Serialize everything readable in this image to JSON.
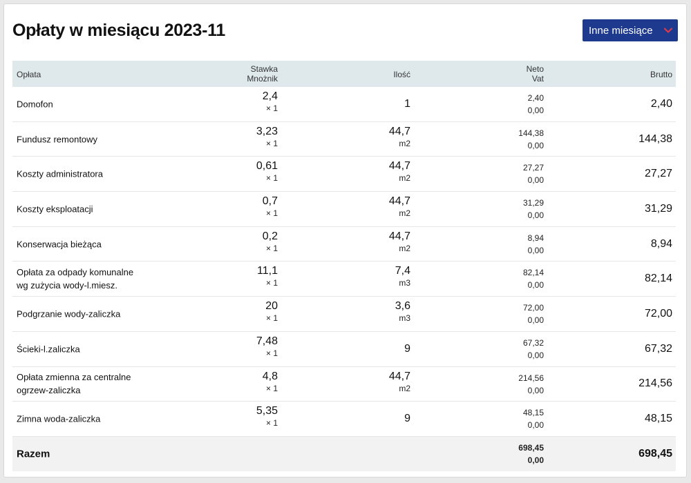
{
  "title": "Opłaty w miesiącu 2023-11",
  "months_button": {
    "label": "Inne miesiące",
    "icon": "chevron-down-icon",
    "bg_color": "#1e3a8f",
    "icon_color": "#e0394a"
  },
  "columns": {
    "name": "Opłata",
    "rate": "Stawka",
    "multiplier": "Mnożnik",
    "quantity": "Ilość",
    "net": "Neto",
    "vat": "Vat",
    "gross": "Brutto"
  },
  "rows": [
    {
      "name": "Domofon",
      "name2": "",
      "rate": "2,4",
      "mult": "× 1",
      "qty": "1",
      "unit": "",
      "net": "2,40",
      "vat": "0,00",
      "gross": "2,40"
    },
    {
      "name": "Fundusz remontowy",
      "name2": "",
      "rate": "3,23",
      "mult": "× 1",
      "qty": "44,7",
      "unit": "m2",
      "net": "144,38",
      "vat": "0,00",
      "gross": "144,38"
    },
    {
      "name": "Koszty administratora",
      "name2": "",
      "rate": "0,61",
      "mult": "× 1",
      "qty": "44,7",
      "unit": "m2",
      "net": "27,27",
      "vat": "0,00",
      "gross": "27,27"
    },
    {
      "name": "Koszty eksploatacji",
      "name2": "",
      "rate": "0,7",
      "mult": "× 1",
      "qty": "44,7",
      "unit": "m2",
      "net": "31,29",
      "vat": "0,00",
      "gross": "31,29"
    },
    {
      "name": "Konserwacja bieżąca",
      "name2": "",
      "rate": "0,2",
      "mult": "× 1",
      "qty": "44,7",
      "unit": "m2",
      "net": "8,94",
      "vat": "0,00",
      "gross": "8,94"
    },
    {
      "name": "Opłata za odpady komunalne",
      "name2": "wg zużycia wody-l.miesz.",
      "rate": "11,1",
      "mult": "× 1",
      "qty": "7,4",
      "unit": "m3",
      "net": "82,14",
      "vat": "0,00",
      "gross": "82,14"
    },
    {
      "name": "Podgrzanie wody-zaliczka",
      "name2": "",
      "rate": "20",
      "mult": "× 1",
      "qty": "3,6",
      "unit": "m3",
      "net": "72,00",
      "vat": "0,00",
      "gross": "72,00"
    },
    {
      "name": "Ścieki-l.zaliczka",
      "name2": "",
      "rate": "7,48",
      "mult": "× 1",
      "qty": "9",
      "unit": "",
      "net": "67,32",
      "vat": "0,00",
      "gross": "67,32"
    },
    {
      "name": "Opłata zmienna za centralne",
      "name2": "ogrzew-zaliczka",
      "rate": "4,8",
      "mult": "× 1",
      "qty": "44,7",
      "unit": "m2",
      "net": "214,56",
      "vat": "0,00",
      "gross": "214,56"
    },
    {
      "name": "Zimna woda-zaliczka",
      "name2": "",
      "rate": "5,35",
      "mult": "× 1",
      "qty": "9",
      "unit": "",
      "net": "48,15",
      "vat": "0,00",
      "gross": "48,15"
    }
  ],
  "total": {
    "label": "Razem",
    "net": "698,45",
    "vat": "0,00",
    "gross": "698,45"
  }
}
